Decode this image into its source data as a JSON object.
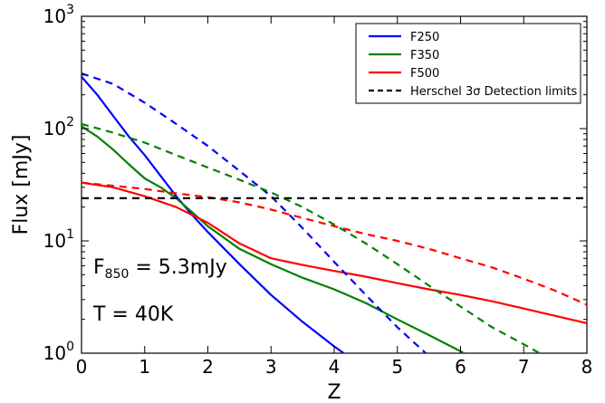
{
  "chart_data": {
    "type": "line",
    "xlabel": "Z",
    "ylabel": "Flux [mJy]",
    "xlim": [
      0,
      8
    ],
    "ylim": [
      1,
      1000
    ],
    "yscale": "log",
    "grid": false,
    "legend_position": "top-right",
    "x_ticks": [
      0,
      1,
      2,
      3,
      4,
      5,
      6,
      7,
      8
    ],
    "y_ticks": [
      {
        "value": 1,
        "base": "10",
        "exp": "0"
      },
      {
        "value": 10,
        "base": "10",
        "exp": "1"
      },
      {
        "value": 100,
        "base": "10",
        "exp": "2"
      },
      {
        "value": 1000,
        "base": "10",
        "exp": "3"
      }
    ],
    "series": [
      {
        "name": "F250",
        "color": "#0000ff",
        "dash": "solid",
        "x": [
          0,
          0.25,
          0.5,
          0.75,
          1.0,
          1.25,
          1.5,
          1.75,
          2.0,
          2.5,
          3.0,
          3.5,
          4.0,
          4.15
        ],
        "y": [
          290,
          200,
          130,
          85,
          58,
          38,
          25,
          17,
          12,
          6.2,
          3.3,
          1.9,
          1.15,
          1.0
        ]
      },
      {
        "name": "F350",
        "color": "#008000",
        "dash": "solid",
        "x": [
          0,
          0.25,
          0.5,
          0.75,
          1.0,
          1.25,
          1.5,
          1.75,
          2.0,
          2.5,
          3.0,
          3.5,
          4.0,
          4.5,
          5.0,
          5.5,
          6.0,
          6.05
        ],
        "y": [
          105,
          85,
          65,
          48,
          36,
          30,
          24,
          18,
          13.5,
          8.5,
          6.2,
          4.7,
          3.7,
          2.8,
          2.0,
          1.45,
          1.04,
          1.0
        ]
      },
      {
        "name": "F500",
        "color": "#ff0000",
        "dash": "solid",
        "x": [
          0,
          0.5,
          1.0,
          1.5,
          2.0,
          2.5,
          3.0,
          3.5,
          4.0,
          4.5,
          5.0,
          5.5,
          6.0,
          6.5,
          7.0,
          7.5,
          8.0
        ],
        "y": [
          33,
          30,
          25,
          20,
          14.5,
          9.5,
          7.0,
          6.1,
          5.4,
          4.8,
          4.2,
          3.7,
          3.3,
          2.9,
          2.5,
          2.15,
          1.85
        ]
      },
      {
        "name": "",
        "color": "#0000ff",
        "dash": "dashed",
        "x": [
          0,
          0.5,
          1.0,
          1.5,
          2.0,
          2.5,
          3.0,
          3.5,
          4.0,
          4.5,
          5.0,
          5.45
        ],
        "y": [
          310,
          250,
          170,
          110,
          70,
          42,
          25,
          13,
          6.5,
          3.3,
          1.7,
          1.0
        ]
      },
      {
        "name": "",
        "color": "#008000",
        "dash": "dashed",
        "x": [
          0,
          0.5,
          1.0,
          1.5,
          2.0,
          2.5,
          3.0,
          3.5,
          4.0,
          4.5,
          5.0,
          5.5,
          6.0,
          6.5,
          7.0,
          7.25
        ],
        "y": [
          110,
          92,
          75,
          58,
          45,
          35,
          27,
          20,
          14,
          9.5,
          6.2,
          4.0,
          2.6,
          1.7,
          1.2,
          1.0
        ]
      },
      {
        "name": "",
        "color": "#ff0000",
        "dash": "dashed",
        "x": [
          0,
          0.5,
          1.0,
          1.5,
          2.0,
          2.5,
          3.0,
          3.5,
          4.0,
          4.5,
          5.0,
          5.5,
          6.0,
          6.5,
          7.0,
          7.5,
          8.0
        ],
        "y": [
          33,
          31,
          29,
          26.5,
          24.5,
          22,
          19,
          16,
          13.5,
          11.5,
          10,
          8.5,
          7.0,
          5.8,
          4.6,
          3.6,
          2.7
        ]
      },
      {
        "name": "Herschel 3σ Detection limits",
        "color": "#000000",
        "dash": "dashed",
        "x": [
          0,
          8
        ],
        "y": [
          24,
          24
        ]
      }
    ],
    "legend": [
      {
        "label": "F250",
        "color": "#0000ff",
        "dash": "solid"
      },
      {
        "label": "F350",
        "color": "#008000",
        "dash": "solid"
      },
      {
        "label": "F500",
        "color": "#ff0000",
        "dash": "solid"
      },
      {
        "label": "Herschel 3σ Detection limits",
        "color": "#000000",
        "dash": "dashed"
      }
    ],
    "annotations": [
      {
        "id": "flux-annotation",
        "base": "F",
        "sub": "850",
        "rest": " = 5.3mJy"
      },
      {
        "id": "temperature-annotation",
        "text": "T = 40K"
      }
    ]
  }
}
